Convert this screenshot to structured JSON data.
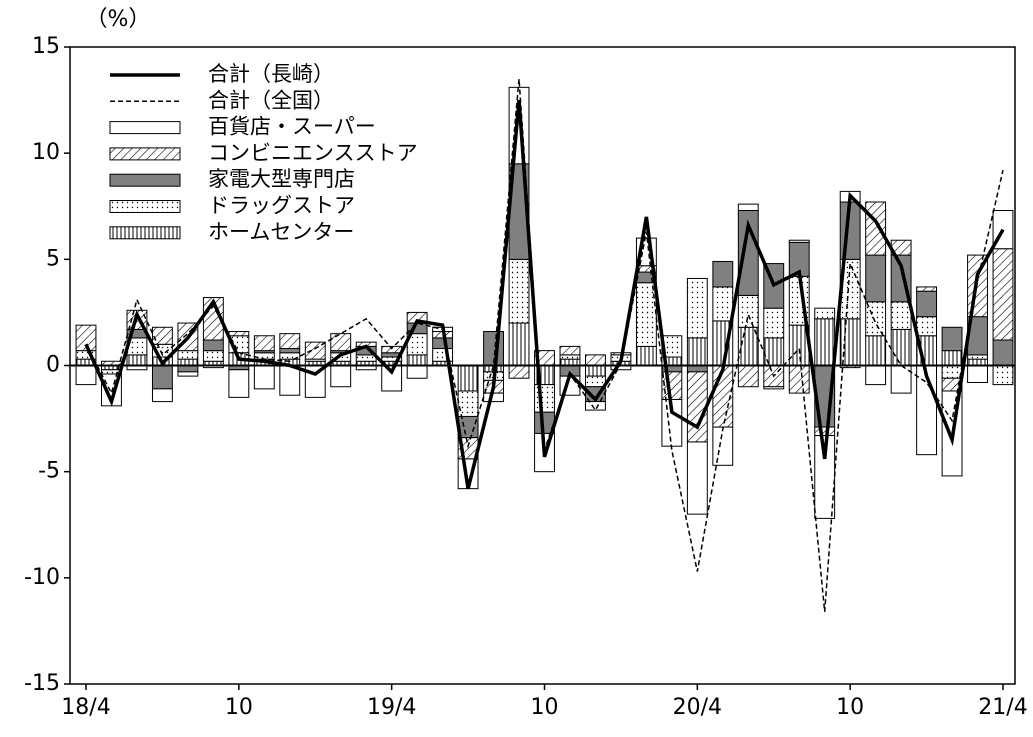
{
  "chart_data": {
    "type": "stacked_bar_line",
    "y_label": "（%）",
    "categories": [
      "18/4",
      null,
      null,
      null,
      null,
      null,
      "10",
      null,
      null,
      null,
      null,
      null,
      "19/4",
      null,
      null,
      null,
      null,
      null,
      "10",
      null,
      null,
      null,
      null,
      null,
      "20/4",
      null,
      null,
      null,
      null,
      null,
      "10",
      null,
      null,
      null,
      null,
      null,
      "21/4"
    ],
    "ylim": [
      -15,
      15
    ],
    "yticks": [
      -15,
      -10,
      -5,
      0,
      5,
      10,
      15
    ],
    "series": [
      {
        "name": "百貨店・スーパー",
        "color": "#ffffff",
        "values": [
          -0.9,
          -1.5,
          -0.2,
          -0.6,
          -0.2,
          -0.1,
          -1.3,
          -1.1,
          -1.4,
          -1.5,
          -1.0,
          -0.2,
          -1.2,
          -0.6,
          0.2,
          -1.4,
          -0.4,
          3.6,
          -1.8,
          -0.9,
          -0.4,
          -0.2,
          1.3,
          -2.2,
          -3.4,
          -1.8,
          0.3,
          -0.1,
          0.1,
          -3.9,
          0.5,
          -0.9,
          -1.3,
          -4.2,
          -4.0,
          -0.8,
          1.8
        ]
      },
      {
        "name": "コンビニエンスストア",
        "color": "#ffffff",
        "values": [
          1.2,
          0.2,
          0.9,
          0.8,
          1.3,
          2.0,
          0.2,
          0.7,
          0.7,
          0.8,
          0.8,
          0.2,
          0.3,
          0.5,
          0.3,
          -1.0,
          -0.6,
          -0.6,
          0.7,
          0.4,
          0.5,
          0.1,
          0.3,
          -1.3,
          -3.3,
          -2.9,
          -1.0,
          -1.0,
          -1.3,
          -0.4,
          -0.1,
          2.5,
          0.7,
          0.2,
          -0.6,
          2.9,
          4.3
        ]
      },
      {
        "name": "家電大型専門店",
        "color": "#808080",
        "values": [
          0,
          0,
          0.4,
          -1.1,
          -0.3,
          0.5,
          -0.2,
          0.1,
          0.2,
          0,
          0.1,
          0.4,
          0.2,
          0.5,
          0.5,
          -1.0,
          1.6,
          4.5,
          -1.0,
          -0.5,
          -0.7,
          0,
          0.5,
          -0.3,
          -0.3,
          1.2,
          4.0,
          2.1,
          1.6,
          -2.9,
          2.7,
          2.2,
          2.2,
          1.2,
          1.1,
          1.8,
          1.2
        ]
      },
      {
        "name": "ドラッグストア",
        "color": "#ffffff",
        "values": [
          0.4,
          -0.2,
          0.8,
          0.6,
          0.4,
          0.5,
          0.8,
          0.3,
          0.3,
          0.1,
          0.4,
          0.3,
          0.2,
          1.0,
          0.6,
          -1.2,
          -0.4,
          3.0,
          -1.3,
          0.2,
          -0.5,
          0.3,
          3.0,
          1.0,
          2.8,
          1.6,
          1.5,
          1.4,
          2.3,
          0.5,
          2.8,
          1.6,
          1.3,
          0.9,
          -0.6,
          0.2,
          -0.9
        ]
      },
      {
        "name": "ホームセンター",
        "color": "#ffffff",
        "values": [
          0.3,
          -0.2,
          0.5,
          0.4,
          0.3,
          0.2,
          0.6,
          0.3,
          0.3,
          0.2,
          0.2,
          0.2,
          0.2,
          0.5,
          0.2,
          -1.2,
          -0.3,
          2.0,
          -0.9,
          0.3,
          -0.5,
          0.2,
          0.9,
          0.4,
          1.3,
          2.1,
          1.8,
          1.3,
          1.9,
          2.2,
          2.2,
          1.4,
          1.7,
          1.4,
          0.7,
          0.3,
          0
        ]
      }
    ],
    "lines": [
      {
        "name": "合計（長崎）",
        "color": "#000000",
        "dashed": false,
        "values": [
          1.0,
          -1.7,
          2.4,
          0.1,
          1.3,
          3.0,
          0.3,
          0.2,
          0.0,
          -0.4,
          0.5,
          0.9,
          -0.3,
          2.1,
          1.9,
          -5.8,
          -1.0,
          12.5,
          -4.3,
          -0.4,
          -1.6,
          0.2,
          7.0,
          -2.2,
          -2.9,
          -0.2,
          6.6,
          3.8,
          4.4,
          -4.4,
          8.0,
          6.8,
          4.7,
          -0.5,
          -3.5,
          4.3,
          6.4
        ]
      },
      {
        "name": "合計（全国）",
        "color": "#000000",
        "dashed": true,
        "values": [
          1.0,
          -1.3,
          3.1,
          0.5,
          1.5,
          2.8,
          0.6,
          0.3,
          0.2,
          0.8,
          1.5,
          2.2,
          0.8,
          2.0,
          1.7,
          -3.8,
          0.0,
          13.5,
          -4.0,
          -0.4,
          -2.1,
          0.1,
          6.3,
          -4.0,
          -9.7,
          -3.0,
          2.4,
          -0.5,
          0.8,
          -11.6,
          4.8,
          2.0,
          0.0,
          -0.8,
          -2.6,
          4.0,
          9.2
        ]
      }
    ]
  }
}
